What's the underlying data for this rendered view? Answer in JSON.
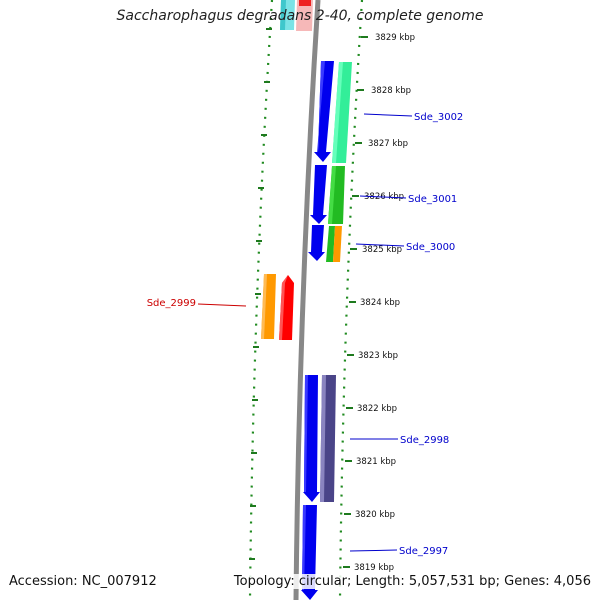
{
  "title": "Saccharophagus degradans 2-40, complete genome",
  "footer": {
    "accession": "Accession: NC_007912",
    "summary": "Topology: circular; Length: 5,057,531 bp; Genes: 4,056"
  },
  "colors": {
    "backbone": "#888888",
    "tick": "#1e7a1e",
    "dotted": "#1f8a1f",
    "forward_label": "#0000cc",
    "reverse_label": "#cc0000"
  },
  "kbp_ticks": [
    {
      "label": "3829 kbp"
    },
    {
      "label": "3828 kbp"
    },
    {
      "label": "3827 kbp"
    },
    {
      "label": "3826 kbp"
    },
    {
      "label": "3825 kbp"
    },
    {
      "label": "3824 kbp"
    },
    {
      "label": "3823 kbp"
    },
    {
      "label": "3822 kbp"
    },
    {
      "label": "3821 kbp"
    },
    {
      "label": "3820 kbp"
    },
    {
      "label": "3819 kbp"
    }
  ],
  "gene_labels": [
    {
      "label": "Sde_3002",
      "strand": "forward"
    },
    {
      "label": "Sde_3001",
      "strand": "forward"
    },
    {
      "label": "Sde_3000",
      "strand": "forward"
    },
    {
      "label": "Sde_2999",
      "strand": "reverse"
    },
    {
      "label": "Sde_2998",
      "strand": "forward"
    },
    {
      "label": "Sde_2997",
      "strand": "forward"
    }
  ]
}
